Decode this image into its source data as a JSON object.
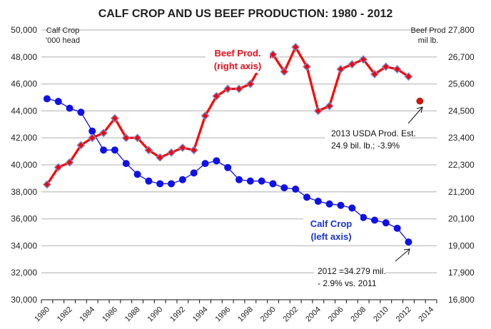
{
  "chart_data": {
    "type": "line",
    "title": "CALF CROP AND US BEEF PRODUCTION: 1980 - 2012",
    "xlabel": "",
    "ylabel_left": [
      "Calf Crop",
      "'000 head"
    ],
    "ylabel_right": [
      "Beef Prod",
      "mil lb."
    ],
    "x_ticks": [
      "1980",
      "1982",
      "1984",
      "1986",
      "1988",
      "1990",
      "1992",
      "1994",
      "1996",
      "1998",
      "2000",
      "2002",
      "2004",
      "2006",
      "2008",
      "2010",
      "2012",
      "2014"
    ],
    "x_range": [
      1980,
      2014
    ],
    "y_left_ticks": [
      "30,000",
      "32,000",
      "34,000",
      "36,000",
      "38,000",
      "40,000",
      "42,000",
      "44,000",
      "46,000",
      "48,000",
      "50,000"
    ],
    "y_left_range": [
      30000,
      50000
    ],
    "y_right_ticks": [
      "16,800",
      "17,900",
      "19,000",
      "20,100",
      "21,200",
      "22,300",
      "23,400",
      "24,500",
      "25,600",
      "26,700",
      "27,800"
    ],
    "y_right_range": [
      16800,
      27800
    ],
    "grid": true,
    "x": [
      1980,
      1981,
      1982,
      1983,
      1984,
      1985,
      1986,
      1987,
      1988,
      1989,
      1990,
      1991,
      1992,
      1993,
      1994,
      1995,
      1996,
      1997,
      1998,
      1999,
      2000,
      2001,
      2002,
      2003,
      2004,
      2005,
      2006,
      2007,
      2008,
      2009,
      2010,
      2011,
      2012
    ],
    "series": [
      {
        "name": "Calf Crop",
        "axis": "left",
        "color": "#1010e8",
        "marker": "circle",
        "values": [
          44900,
          44700,
          44200,
          43900,
          42500,
          41100,
          41100,
          40100,
          39300,
          38800,
          38600,
          38600,
          38900,
          39400,
          40100,
          40300,
          39800,
          38900,
          38800,
          38800,
          38600,
          38300,
          38200,
          37600,
          37300,
          37100,
          37000,
          36800,
          36100,
          35900,
          35700,
          35300,
          34279
        ]
      },
      {
        "name": "Beef Prod.",
        "axis": "right",
        "color": "#ff0000",
        "marker": "diamond",
        "marker_edge": "#6f8fd0",
        "values": [
          21500,
          22200,
          22400,
          23100,
          23400,
          23600,
          24200,
          23400,
          23400,
          22900,
          22600,
          22800,
          23000,
          22900,
          24300,
          25100,
          25400,
          25400,
          25600,
          26400,
          26800,
          26100,
          27100,
          26300,
          24500,
          24700,
          26200,
          26400,
          26600,
          26000,
          26300,
          26200,
          25900
        ]
      }
    ],
    "estimate": {
      "name": "2013 USDA Prod. Est.",
      "axis": "right",
      "x": 2013,
      "value": 24900,
      "color": "#e01010"
    },
    "series_labels": {
      "beef": [
        "Beef Prod.",
        "(right axis)"
      ],
      "calf": [
        "Calf Crop",
        "(left axis)"
      ]
    },
    "annotations": [
      {
        "id": "estimate",
        "lines": [
          "2013  USDA Prod. Est.",
          "24.9 bil. lb.; -3.9%"
        ]
      },
      {
        "id": "calf2012",
        "lines": [
          "2012 =34.279  mil.",
          "- 2.9% vs. 2011"
        ]
      }
    ]
  }
}
